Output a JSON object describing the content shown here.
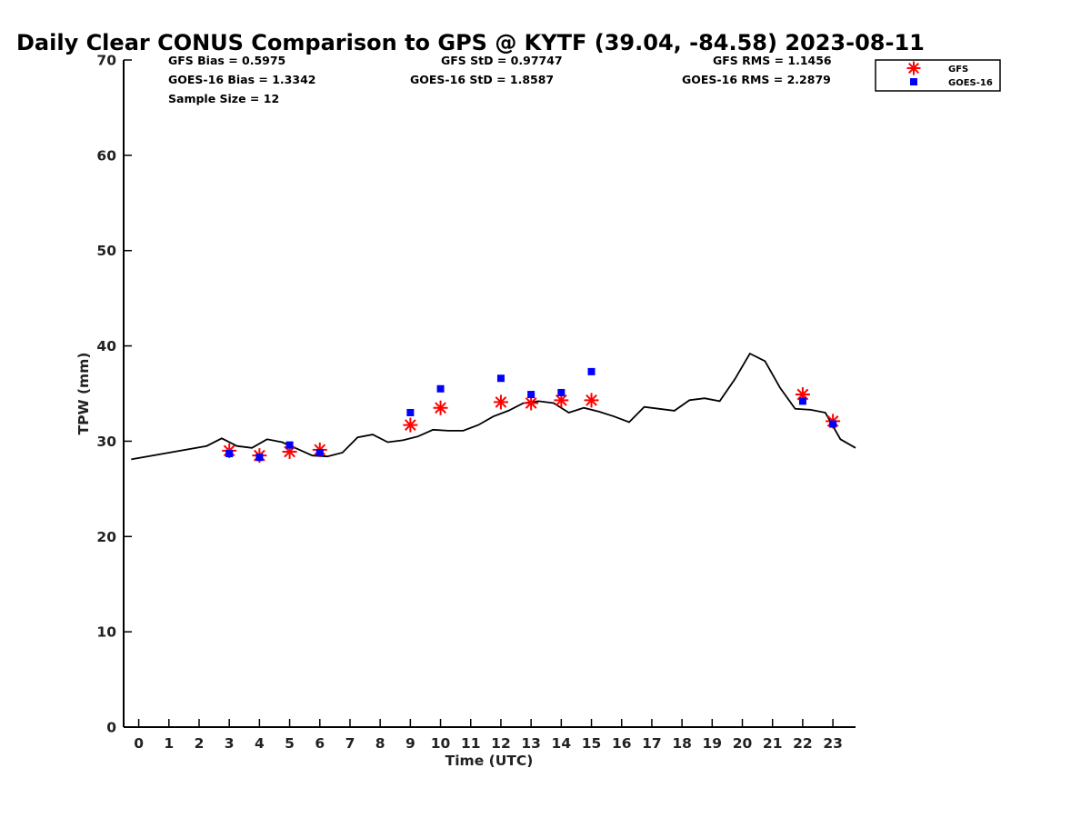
{
  "chart_data": {
    "type": "line",
    "title": "Daily Clear CONUS Comparison to GPS @ KYTF (39.04, -84.58) 2023-08-11",
    "xlabel": "Time (UTC)",
    "ylabel": "TPW (mm)",
    "xlim": [
      -0.5,
      23.75
    ],
    "ylim": [
      0,
      70
    ],
    "x_ticks": [
      0,
      1,
      2,
      3,
      4,
      5,
      6,
      7,
      8,
      9,
      10,
      11,
      12,
      13,
      14,
      15,
      16,
      17,
      18,
      19,
      20,
      21,
      22,
      23
    ],
    "y_ticks": [
      0,
      10,
      20,
      30,
      40,
      50,
      60,
      70
    ],
    "grid": false,
    "legend_position": "top-right",
    "stats": {
      "gfs_bias": "GFS Bias = 0.5975",
      "goes_bias": "GOES-16 Bias = 1.3342",
      "sample_size": "Sample Size = 12",
      "gfs_std": "GFS StD = 0.97747",
      "goes_std": "GOES-16 StD = 1.8587",
      "gfs_rms": "GFS RMS = 1.1456",
      "goes_rms": "GOES-16 RMS = 2.2879"
    },
    "series": [
      {
        "kind": "line",
        "color": "#000000",
        "x": [
          -0.25,
          2.25,
          2.75,
          3.25,
          3.75,
          4.25,
          4.75,
          5.25,
          5.75,
          6.25,
          6.75,
          7.25,
          7.75,
          8.25,
          8.75,
          9.25,
          9.75,
          10.25,
          10.75,
          11.25,
          11.75,
          12.25,
          12.75,
          13.25,
          13.75,
          14.25,
          14.75,
          15.25,
          15.75,
          16.25,
          16.75,
          17.25,
          17.75,
          18.25,
          18.75,
          19.25,
          19.75,
          20.25,
          20.75,
          21.25,
          21.75,
          22.25,
          22.75,
          23.25,
          23.75
        ],
        "y": [
          28.1,
          29.5,
          30.3,
          29.5,
          29.3,
          30.2,
          29.9,
          29.2,
          28.5,
          28.4,
          28.8,
          30.4,
          30.7,
          29.9,
          30.1,
          30.5,
          31.2,
          31.1,
          31.1,
          31.7,
          32.6,
          33.2,
          34.0,
          34.2,
          34.0,
          33.0,
          33.5,
          33.1,
          32.6,
          32.0,
          33.6,
          33.4,
          33.2,
          34.3,
          34.5,
          34.2,
          36.5,
          39.2,
          38.4,
          35.6,
          33.4,
          33.3,
          33.0,
          30.2,
          29.3
        ]
      },
      {
        "name": "GFS",
        "kind": "asterisk",
        "color": "#ff0000",
        "x": [
          3,
          4,
          5,
          6,
          9,
          10,
          12,
          13,
          14,
          15,
          22,
          23
        ],
        "y": [
          29.0,
          28.5,
          28.9,
          29.1,
          31.7,
          33.5,
          34.1,
          34.0,
          34.3,
          34.3,
          34.9,
          32.1
        ]
      },
      {
        "name": "GOES-16",
        "kind": "square",
        "color": "#0000ff",
        "x": [
          3,
          4,
          5,
          6,
          9,
          10,
          12,
          13,
          14,
          15,
          22,
          23
        ],
        "y": [
          28.7,
          28.3,
          29.6,
          28.8,
          33.0,
          35.5,
          36.6,
          34.9,
          35.1,
          37.3,
          34.2,
          31.8
        ]
      }
    ]
  }
}
